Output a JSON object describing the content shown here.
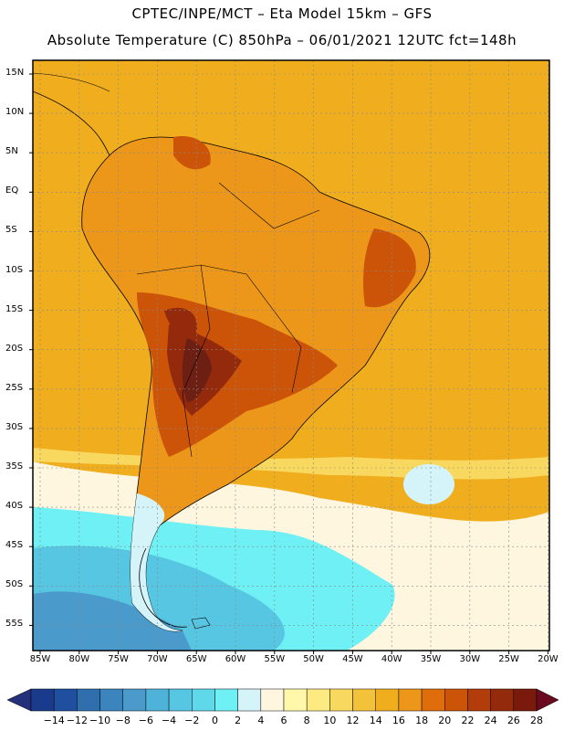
{
  "header": {
    "line1": "CPTEC/INPE/MCT –  Eta Model 15km – GFS",
    "line2": "Absolute Temperature (C) 850hPa – 06/01/2021 12UTC fct=148h"
  },
  "axes": {
    "lat_labels": [
      "15N",
      "10N",
      "5N",
      "EQ",
      "5S",
      "10S",
      "15S",
      "20S",
      "25S",
      "30S",
      "35S",
      "40S",
      "45S",
      "50S",
      "55S"
    ],
    "lon_labels": [
      "85W",
      "80W",
      "75W",
      "70W",
      "65W",
      "60W",
      "55W",
      "50W",
      "45W",
      "40W",
      "35W",
      "30W",
      "25W",
      "20W"
    ]
  },
  "colorbar": {
    "labels": [
      "-14",
      "-12",
      "-10",
      "-8",
      "-6",
      "-4",
      "-2",
      "0",
      "2",
      "4",
      "6",
      "8",
      "10",
      "12",
      "14",
      "16",
      "18",
      "20",
      "22",
      "24",
      "26",
      "28"
    ],
    "colors": [
      "#1a3b8c",
      "#1f4f9e",
      "#2f6fae",
      "#3c84bd",
      "#4a9bcc",
      "#4fb2d8",
      "#57c6e2",
      "#5fd8ea",
      "#6ef0f4",
      "#d4f4fa",
      "#fff6e0",
      "#fff8aa",
      "#fdea80",
      "#f9d860",
      "#f2c23a",
      "#f0ae1e",
      "#ec961a",
      "#e06d0c",
      "#cc5408",
      "#b23c0a",
      "#942a0c",
      "#7a1a0c"
    ],
    "end_colors": {
      "low": "#24307a",
      "high": "#6a0a1e"
    }
  },
  "map": {
    "region": "South America",
    "colors": {
      "ocean_warm": "#f0ae1e",
      "land_warm": "#ec961a",
      "hot": "#cc5408",
      "hotter": "#942a0c",
      "hottest": "#6e1f14",
      "mild": "#f2c23a",
      "cool_yellow": "#fdea80",
      "cream": "#fff6e0",
      "cold": "#6ef0f4",
      "colder": "#57c6e2",
      "coldest": "#4a9bcc"
    }
  }
}
